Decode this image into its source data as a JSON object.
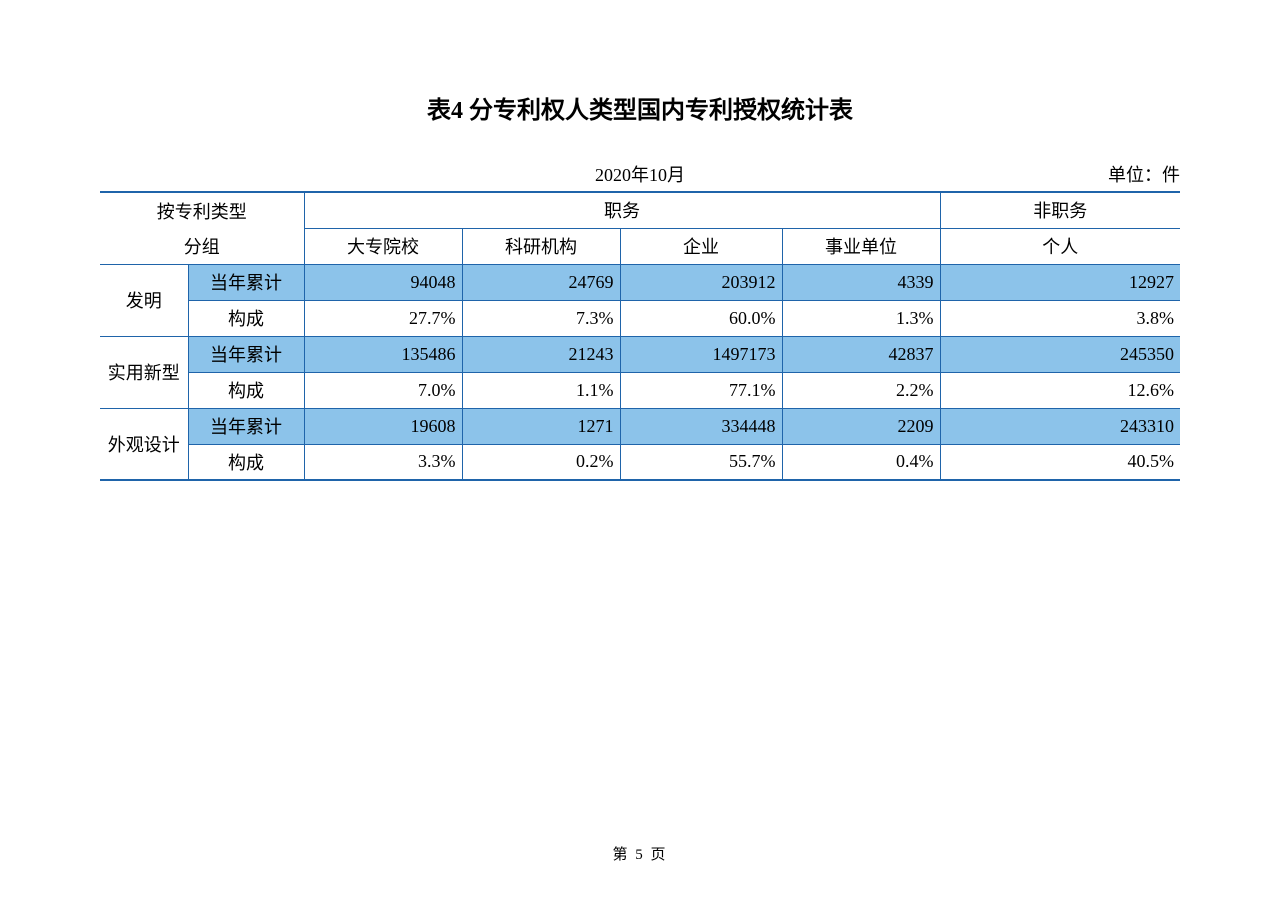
{
  "title": "表4  分专利权人类型国内专利授权统计表",
  "date": "2020年10月",
  "unit": "单位：件",
  "headers": {
    "group1_line1": "按专利类型",
    "group1_line2": "分组",
    "group2": "职务",
    "group3": "非职务",
    "col1": "大专院校",
    "col2": "科研机构",
    "col3": "企业",
    "col4": "事业单位",
    "col5": "个人"
  },
  "sublabels": {
    "annual": "当年累计",
    "composition": "构成"
  },
  "rows": [
    {
      "category": "发明",
      "annual": [
        "94048",
        "24769",
        "203912",
        "4339",
        "12927"
      ],
      "composition": [
        "27.7%",
        "7.3%",
        "60.0%",
        "1.3%",
        "3.8%"
      ]
    },
    {
      "category": "实用新型",
      "annual": [
        "135486",
        "21243",
        "1497173",
        "42837",
        "245350"
      ],
      "composition": [
        "7.0%",
        "1.1%",
        "77.1%",
        "2.2%",
        "12.6%"
      ]
    },
    {
      "category": "外观设计",
      "annual": [
        "19608",
        "1271",
        "334448",
        "2209",
        "243310"
      ],
      "composition": [
        "3.3%",
        "0.2%",
        "55.7%",
        "0.4%",
        "40.5%"
      ]
    }
  ],
  "page": "第 5 页"
}
